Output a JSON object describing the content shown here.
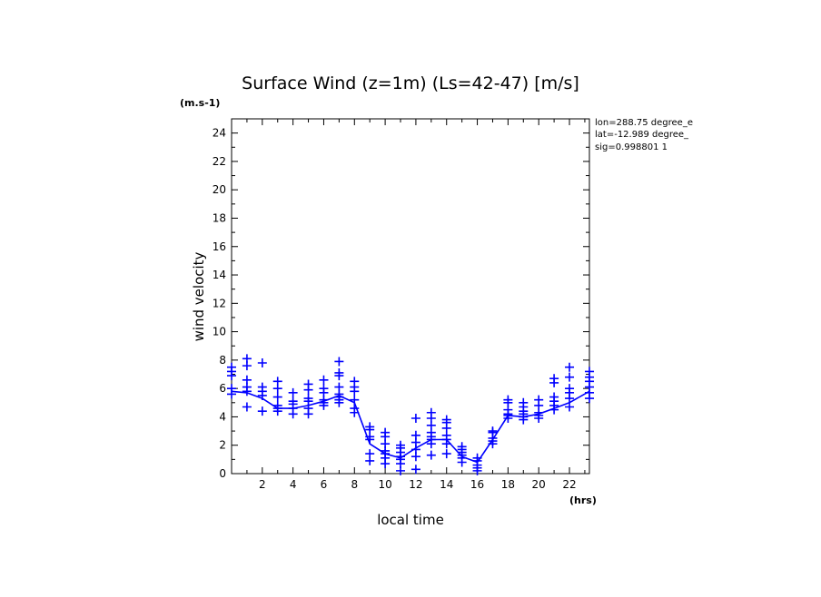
{
  "chart_data": {
    "type": "line",
    "title": "Surface Wind (z=1m) (Ls=42-47) [m/s]",
    "units_label": "(m.s-1)",
    "ylabel": "wind velocity",
    "xlabel": "local time",
    "x_units": "(hrs)",
    "xlim": [
      0,
      23.3
    ],
    "ylim": [
      0,
      25
    ],
    "x_ticks": [
      2,
      4,
      6,
      8,
      10,
      12,
      14,
      16,
      18,
      20,
      22
    ],
    "y_ticks": [
      0,
      2,
      4,
      6,
      8,
      10,
      12,
      14,
      16,
      18,
      20,
      22,
      24
    ],
    "grid": false,
    "legend": "none",
    "info_lines": [
      "lon=288.75 degree_e",
      "lat=-12.989 degree_",
      "sig=0.998801 1"
    ],
    "color": "#0000ff",
    "series": [
      {
        "kind": "mean-line",
        "x": [
          0,
          1.0,
          2.0,
          3.0,
          4.0,
          5.0,
          6.0,
          7.0,
          8.0,
          9.0,
          10.0,
          11.0,
          12.0,
          13.0,
          14.0,
          15.0,
          16.0,
          17.0,
          18.0,
          19.0,
          20.0,
          21.0,
          22.0,
          23.3
        ],
        "y": [
          5.8,
          5.7,
          5.3,
          4.6,
          4.6,
          4.8,
          5.1,
          5.5,
          5.0,
          2.1,
          1.4,
          1.1,
          1.8,
          2.4,
          2.4,
          1.2,
          0.8,
          2.4,
          4.1,
          4.0,
          4.2,
          4.6,
          5.0,
          5.8
        ]
      },
      {
        "kind": "scatter-markers",
        "x": [
          0,
          1.0,
          2.0,
          3.0,
          4.0,
          5.0,
          6.0,
          7.0,
          8.0,
          9.0,
          10.0,
          11.0,
          12.0,
          13.0,
          14.0,
          15.0,
          16.0,
          17.0,
          18.0,
          19.0,
          20.0,
          21.0,
          22.0,
          23.3
        ],
        "y_sets": [
          [
            5.6,
            6.0,
            6.9,
            7.2,
            7.5
          ],
          [
            4.7,
            5.8,
            6.1,
            6.6,
            7.6,
            8.1
          ],
          [
            4.4,
            5.5,
            5.8,
            6.1,
            7.8
          ],
          [
            4.4,
            4.6,
            4.8,
            5.4,
            6.0,
            6.5
          ],
          [
            4.2,
            4.6,
            4.9,
            5.1,
            5.7
          ],
          [
            4.2,
            4.6,
            5.1,
            5.3,
            5.9,
            6.3
          ],
          [
            4.8,
            5.0,
            5.2,
            5.7,
            6.0,
            6.6
          ],
          [
            5.0,
            5.2,
            5.4,
            5.6,
            6.1,
            6.9,
            7.1,
            7.9
          ],
          [
            4.3,
            4.6,
            5.2,
            5.8,
            6.1,
            6.5
          ],
          [
            0.9,
            1.4,
            2.4,
            2.6,
            3.1,
            3.3
          ],
          [
            0.7,
            1.1,
            1.4,
            1.6,
            2.1,
            2.6,
            2.9
          ],
          [
            0.2,
            0.7,
            1.0,
            1.2,
            1.5,
            1.8,
            2.0
          ],
          [
            0.3,
            1.2,
            1.7,
            2.2,
            2.7,
            3.9
          ],
          [
            1.3,
            2.1,
            2.4,
            2.6,
            2.9,
            3.4,
            3.9,
            4.3
          ],
          [
            1.4,
            2.1,
            2.4,
            2.7,
            3.2,
            3.6,
            3.8
          ],
          [
            0.8,
            1.1,
            1.3,
            1.5,
            1.7,
            1.9
          ],
          [
            0.2,
            0.4,
            0.6,
            0.9,
            1.1
          ],
          [
            2.1,
            2.3,
            2.5,
            2.9,
            3.0
          ],
          [
            3.9,
            4.1,
            4.2,
            4.5,
            5.0,
            5.2
          ],
          [
            3.8,
            4.0,
            4.2,
            4.4,
            4.7,
            5.0
          ],
          [
            3.9,
            4.1,
            4.3,
            4.8,
            5.2
          ],
          [
            4.5,
            4.8,
            5.1,
            5.4,
            6.4,
            6.7
          ],
          [
            4.7,
            5.3,
            5.7,
            6.0,
            6.8,
            7.5
          ],
          [
            5.3,
            5.7,
            6.1,
            6.5,
            6.8,
            7.2
          ]
        ]
      }
    ]
  }
}
